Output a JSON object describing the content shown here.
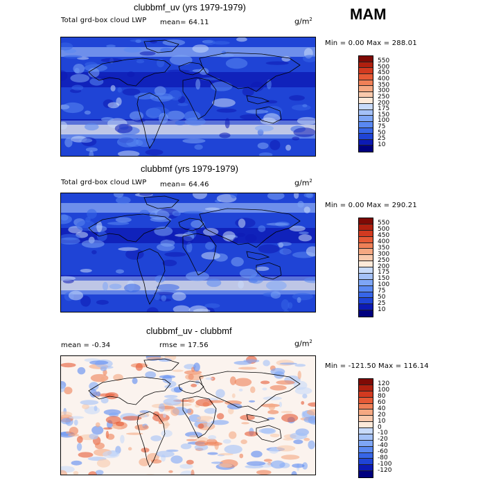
{
  "season": "MAM",
  "colors": {
    "ocean_blue": "#1a46d8",
    "abs_scale": [
      "#00007f",
      "#0c1ab4",
      "#1f44d6",
      "#3766e8",
      "#5a89f2",
      "#7ea6f6",
      "#a4c1f8",
      "#c8dafa",
      "#ecf2fd",
      "#fde9d9",
      "#f9c9ac",
      "#f5a882",
      "#ef8057",
      "#e65a36",
      "#d23a20",
      "#b0200f",
      "#7f0a05"
    ],
    "diff_scale": [
      "#00007f",
      "#0c1ab4",
      "#1f44d6",
      "#3766e8",
      "#5a89f2",
      "#7ea6f6",
      "#a4c1f8",
      "#c8dafa",
      "#ecf2fd",
      "#fde9d9",
      "#f9c9ac",
      "#f5a882",
      "#ef8057",
      "#e65a36",
      "#d23a20",
      "#b0200f",
      "#7f0a05"
    ]
  },
  "chart_data": [
    {
      "type": "heatmap",
      "title": "clubbmf_uv (yrs 1979-1979)",
      "variable_label": "Total grd-box cloud LWP",
      "mean_label": "mean=  64.11",
      "units": "g/m",
      "units_exp": "2",
      "min_max_label": "Min =    0.00 Max = 288.01",
      "colorbar_levels": [
        "550",
        "500",
        "450",
        "400",
        "350",
        "300",
        "250",
        "200",
        "175",
        "150",
        "100",
        "75",
        "50",
        "25",
        "10"
      ]
    },
    {
      "type": "heatmap",
      "title": "clubbmf (yrs 1979-1979)",
      "variable_label": "Total grd-box cloud LWP",
      "mean_label": "mean=  64.46",
      "units": "g/m",
      "units_exp": "2",
      "min_max_label": "Min =    0.00 Max = 290.21",
      "colorbar_levels": [
        "550",
        "500",
        "450",
        "400",
        "350",
        "300",
        "250",
        "200",
        "175",
        "150",
        "100",
        "75",
        "50",
        "25",
        "10"
      ]
    },
    {
      "type": "heatmap",
      "title": "clubbmf_uv - clubbmf",
      "mean_label": "mean =  -0.34",
      "rmse_label": "rmse =  17.56",
      "units": "g/m",
      "units_exp": "2",
      "min_max_label": "Min = -121.50 Max = 116.14",
      "colorbar_levels": [
        "120",
        "100",
        "80",
        "60",
        "40",
        "20",
        "10",
        "0",
        "-10",
        "-20",
        "-40",
        "-60",
        "-80",
        "-100",
        "-120"
      ]
    }
  ]
}
